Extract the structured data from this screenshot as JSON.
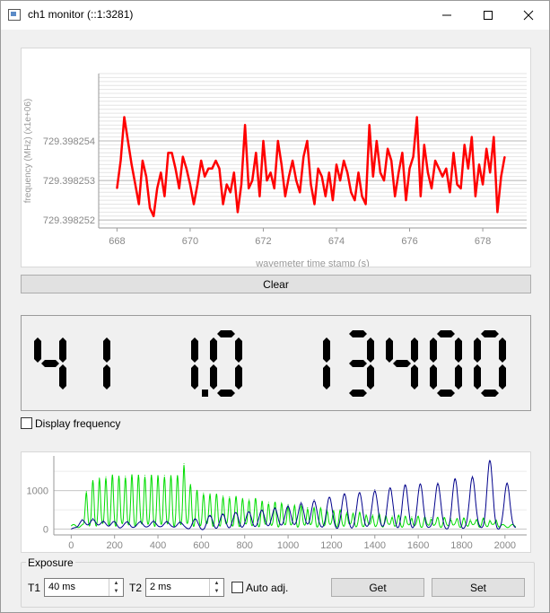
{
  "window": {
    "title": "ch1 monitor (::1:3281)"
  },
  "top_plot": {
    "chart_data": {
      "type": "line",
      "title": "",
      "xlabel": "wavemeter time stamp (s)",
      "ylabel": "frequency (MHz) (x1e+06)",
      "xlim": [
        667.5,
        679.2
      ],
      "ylim": [
        729.3982518,
        729.3982557
      ],
      "x_ticks": [
        "668",
        "670",
        "672",
        "674",
        "676",
        "678"
      ],
      "y_ticks": [
        "729.398252",
        "729.398253",
        "729.398254"
      ],
      "grid": true,
      "series": [
        {
          "color": "#ff0000",
          "x": [
            668.0,
            668.1,
            668.2,
            668.3,
            668.4,
            668.5,
            668.6,
            668.7,
            668.8,
            668.9,
            669.0,
            669.1,
            669.2,
            669.3,
            669.4,
            669.5,
            669.6,
            669.7,
            669.8,
            669.9,
            670.0,
            670.1,
            670.2,
            670.3,
            670.4,
            670.5,
            670.6,
            670.7,
            670.8,
            670.9,
            671.0,
            671.1,
            671.2,
            671.3,
            671.4,
            671.5,
            671.6,
            671.7,
            671.8,
            671.9,
            672.0,
            672.1,
            672.2,
            672.3,
            672.4,
            672.5,
            672.6,
            672.7,
            672.8,
            672.9,
            673.0,
            673.1,
            673.2,
            673.3,
            673.4,
            673.5,
            673.6,
            673.7,
            673.8,
            673.9,
            674.0,
            674.1,
            674.2,
            674.3,
            674.4,
            674.5,
            674.6,
            674.7,
            674.8,
            674.9,
            675.0,
            675.1,
            675.2,
            675.3,
            675.4,
            675.5,
            675.6,
            675.7,
            675.8,
            675.9,
            676.0,
            676.1,
            676.2,
            676.3,
            676.4,
            676.5,
            676.6,
            676.7,
            676.8,
            676.9,
            677.0,
            677.1,
            677.2,
            677.3,
            677.4,
            677.5,
            677.6,
            677.7,
            677.8,
            677.9,
            678.0,
            678.1,
            678.2,
            678.3,
            678.4,
            678.5,
            678.6
          ],
          "y": [
            729.3982528,
            729.3982535,
            729.3982546,
            729.398254,
            729.3982534,
            729.3982529,
            729.3982524,
            729.3982535,
            729.3982531,
            729.3982523,
            729.3982521,
            729.3982528,
            729.3982532,
            729.3982526,
            729.3982537,
            729.3982537,
            729.3982533,
            729.3982528,
            729.3982536,
            729.3982533,
            729.3982529,
            729.3982524,
            729.3982529,
            729.3982535,
            729.3982531,
            729.3982533,
            729.3982533,
            729.3982535,
            729.3982533,
            729.3982524,
            729.3982529,
            729.3982527,
            729.3982532,
            729.3982522,
            729.3982529,
            729.3982544,
            729.3982528,
            729.398253,
            729.3982537,
            729.3982526,
            729.398254,
            729.398253,
            729.3982532,
            729.3982528,
            729.398254,
            729.3982534,
            729.3982526,
            729.3982531,
            729.3982535,
            729.398253,
            729.3982527,
            729.3982536,
            729.398254,
            729.3982529,
            729.3982524,
            729.3982533,
            729.3982531,
            729.3982526,
            729.3982532,
            729.3982525,
            729.3982534,
            729.398253,
            729.3982535,
            729.3982532,
            729.3982527,
            729.3982525,
            729.3982532,
            729.3982526,
            729.3982524,
            729.3982544,
            729.3982531,
            729.398254,
            729.3982532,
            729.398253,
            729.3982538,
            729.3982535,
            729.3982526,
            729.3982532,
            729.3982537,
            729.3982525,
            729.3982533,
            729.3982536,
            729.3982546,
            729.3982526,
            729.3982539,
            729.3982532,
            729.3982528,
            729.3982535,
            729.3982533,
            729.3982531,
            729.3982533,
            729.3982527,
            729.3982537,
            729.3982529,
            729.3982528,
            729.3982539,
            729.3982533,
            729.3982541,
            729.3982526,
            729.3982534,
            729.3982529,
            729.3982538,
            729.3982532,
            729.3982541,
            729.3982522,
            729.3982531,
            729.3982536
          ]
        }
      ]
    }
  },
  "clear_button": {
    "label": "Clear"
  },
  "lcd": {
    "digits": "41 1.0 13400"
  },
  "display_frequency": {
    "label": "Display frequency",
    "checked": false
  },
  "bottom_plot": {
    "chart_data": {
      "type": "line",
      "title": "",
      "xlabel": "",
      "ylabel": "",
      "xlim": [
        -80,
        2100
      ],
      "ylim": [
        -150,
        1900
      ],
      "x_ticks": [
        "0",
        "200",
        "400",
        "600",
        "800",
        "1000",
        "1200",
        "1400",
        "1600",
        "1800",
        "2000"
      ],
      "y_ticks": [
        "0",
        "1000"
      ],
      "grid": true,
      "series": [
        {
          "color": "#00dd00",
          "peak_x": [
            70,
            100,
            130,
            160,
            190,
            220,
            250,
            280,
            310,
            340,
            370,
            400,
            430,
            460,
            490,
            520,
            550,
            580,
            610,
            640,
            670,
            700,
            730,
            760,
            790,
            820,
            850,
            880,
            910,
            940,
            970,
            1000,
            1030,
            1060,
            1090,
            1120,
            1150,
            1180,
            1210,
            1240,
            1270,
            1300,
            1330,
            1360,
            1390,
            1420,
            1450,
            1480,
            1510,
            1540,
            1570,
            1600,
            1630,
            1660,
            1690,
            1720,
            1750,
            1780,
            1810,
            1840,
            1870,
            1900,
            1930,
            1960
          ],
          "peak_y": [
            900,
            1150,
            1250,
            1280,
            1300,
            1300,
            1300,
            1310,
            1320,
            1320,
            1310,
            1300,
            1320,
            1310,
            1290,
            1620,
            1080,
            900,
            860,
            840,
            800,
            780,
            760,
            740,
            720,
            700,
            690,
            650,
            620,
            600,
            580,
            560,
            520,
            500,
            480,
            470,
            440,
            420,
            400,
            380,
            360,
            340,
            320,
            300,
            290,
            280,
            270,
            260,
            250,
            250,
            240,
            230,
            220,
            220,
            210,
            200,
            200,
            190,
            180,
            180,
            170,
            170,
            160,
            160
          ],
          "baseline": 80
        },
        {
          "color": "#00008b",
          "peak_x": [
            50,
            100,
            150,
            200,
            260,
            320,
            380,
            440,
            500,
            570,
            640,
            700,
            760,
            820,
            880,
            940,
            1000,
            1060,
            1120,
            1190,
            1260,
            1330,
            1400,
            1470,
            1540,
            1610,
            1690,
            1770,
            1850,
            1930,
            2010
          ],
          "peak_y": [
            250,
            280,
            220,
            200,
            200,
            210,
            230,
            220,
            200,
            250,
            330,
            370,
            420,
            450,
            500,
            560,
            620,
            700,
            760,
            820,
            890,
            950,
            1020,
            1070,
            1120,
            1170,
            1200,
            1280,
            1380,
            1760,
            1200
          ],
          "baseline": 0
        }
      ]
    }
  },
  "exposure": {
    "group_title": "Exposure",
    "t1_label": "T1",
    "t1_value": "40 ms",
    "t2_label": "T2",
    "t2_value": "2 ms",
    "auto_adj_label": "Auto adj.",
    "get_label": "Get",
    "set_label": "Set"
  }
}
